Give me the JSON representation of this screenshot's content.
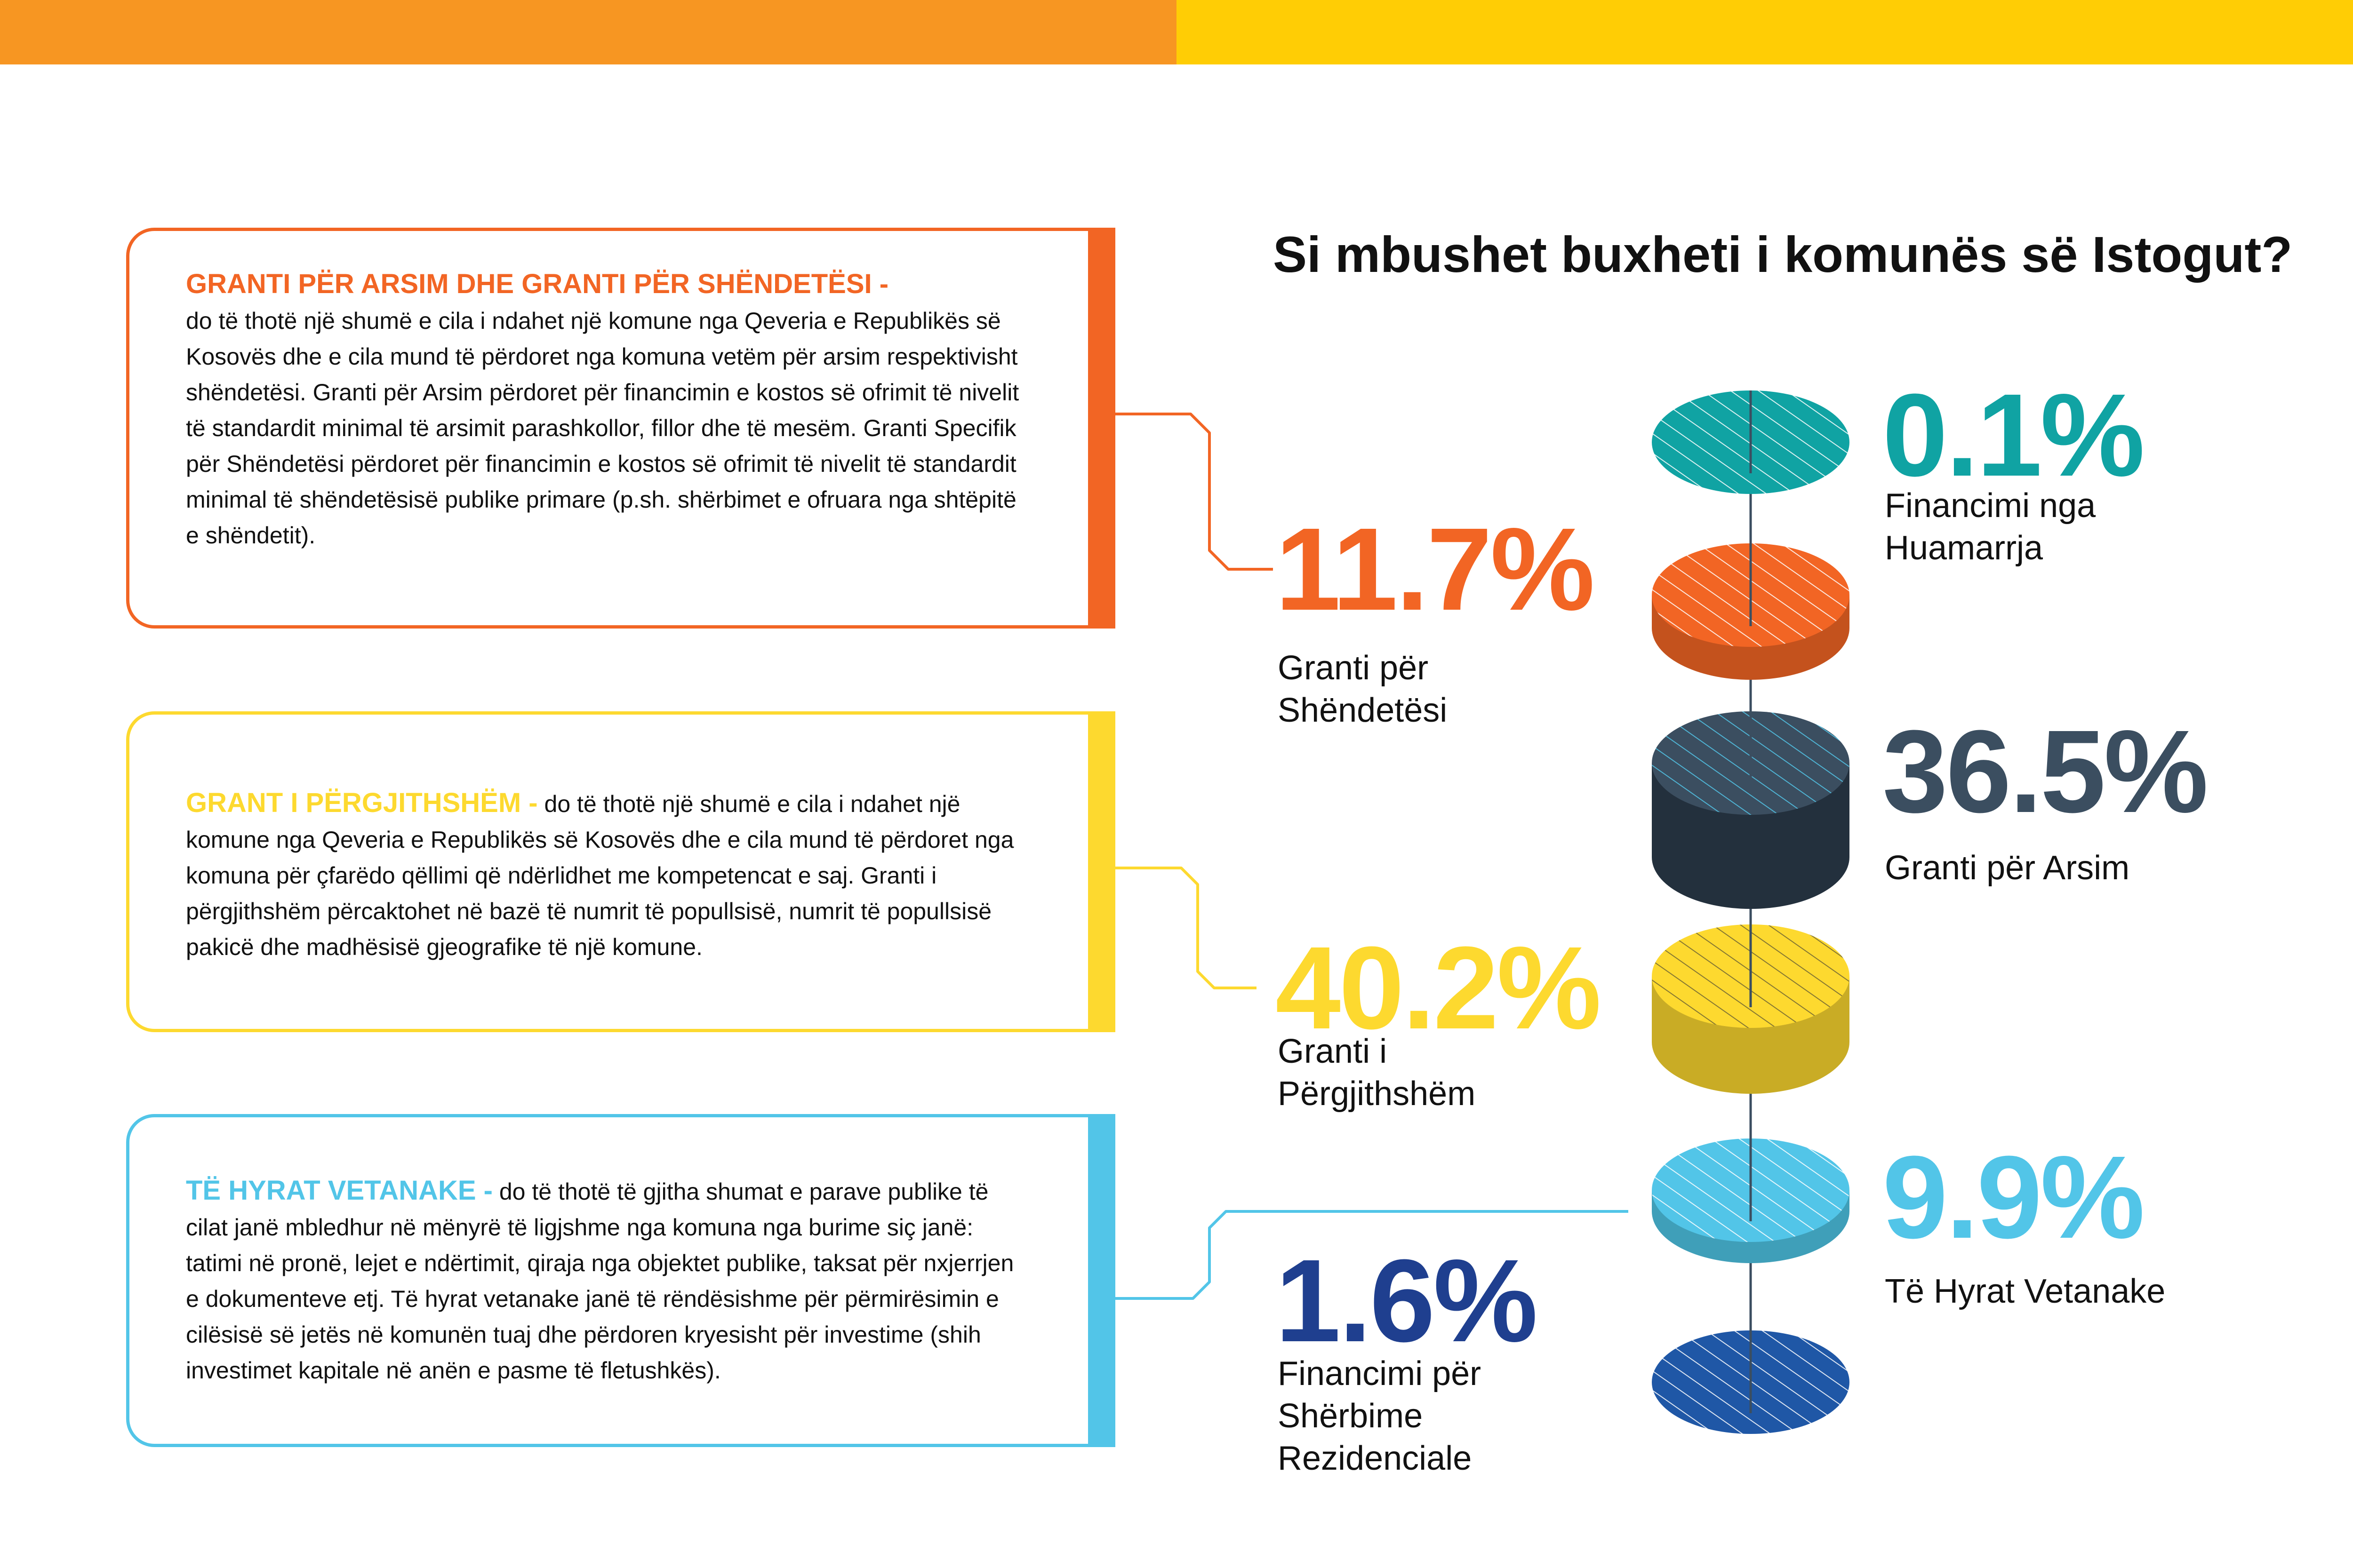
{
  "title": "Si mbushet buxheti i komunës së Istogut?",
  "cards": [
    {
      "heading": "GRANTI PËR ARSIM DHE GRANTI PËR SHËNDETËSI -",
      "body": "do të thotë një shumë e cila i ndahet një komune nga Qeveria e Republikës së Kosovës dhe e cila mund të përdoret nga komuna vetëm për arsim respektivisht shëndetësi. Granti për Arsim përdoret për financimin e kostos së ofrimit të nivelit të standardit minimal të arsimit parashkollor, fillor dhe të mesëm. Granti Specifik për Shëndetësi përdoret për financimin e kostos së ofrimit të nivelit të standardit minimal të shëndetësisë publike primare (p.sh. shërbimet e ofruara nga shtëpitë e shëndetit).",
      "color": "#f26524"
    },
    {
      "heading": "GRANT I PËRGJITHSHËM -",
      "body": "do të thotë një shumë e cila i ndahet një komune nga Qeveria e Republikës së Kosovës dhe e cila mund të përdoret nga komuna për çfarëdo qëllimi që ndërlidhet me kompetencat e saj. Granti i përgjithshëm përcaktohet në bazë të numrit të popullsisë, numrit të popullsisë pakicë dhe madhësisë gjeografike të një komune.",
      "color": "#fdd92f"
    },
    {
      "heading": "TË HYRAT VETANAKE -",
      "body": "do të thotë të gjitha shumat e parave publike të cilat janë mbledhur në mënyrë të ligjshme nga komuna nga burime siç janë: tatimi në pronë, lejet e ndërtimit, qiraja nga objektet publike, taksat për nxjerrjen e dokumenteve etj. Të hyrat vetanake janë të rëndësishme për përmirësimin e cilësisë së jetës në komunën tuaj dhe përdoren kryesisht për investime (shih investimet kapitale në anën e pasme të fletushkës).",
      "color": "#52c5e8"
    }
  ],
  "chart_data": {
    "type": "pie",
    "title": "Si mbushet buxheti i komunës së Istogut?",
    "categories": [
      "Financimi nga Huamarrja",
      "Granti për Shëndetësi",
      "Granti për Arsim",
      "Granti i Përgjithshëm",
      "Të Hyrat Vetanake",
      "Financimi për Shërbime Rezidenciale"
    ],
    "values": [
      0.1,
      11.7,
      36.5,
      40.2,
      9.9,
      1.6
    ],
    "unit": "%",
    "labels": [
      "0.1%",
      "11.7%",
      "36.5%",
      "40.2%",
      "9.9%",
      "1.6%"
    ],
    "label_texts": [
      "Financimi nga\nHuamarrja",
      "Granti për\nShëndetësi",
      "Granti për Arsim",
      "Granti i\nPërgjithshëm",
      "Të Hyrat Vetanake",
      "Financimi për\nShërbime\nRezidenciale"
    ],
    "colors": [
      "#10a3a3",
      "#f26524",
      "#3b4e60",
      "#fdd92f",
      "#52c5e8",
      "#1f57a6"
    ],
    "side_colors": [
      "#0d8282",
      "#c4521d",
      "#23303d",
      "#c9ac25",
      "#3f9fb9",
      "#1a468a"
    ],
    "value_colors": [
      "#10a3a3",
      "#f26524",
      "#3b4e60",
      "#fdd92f",
      "#52c5e8",
      "#1f3f8f"
    ]
  }
}
